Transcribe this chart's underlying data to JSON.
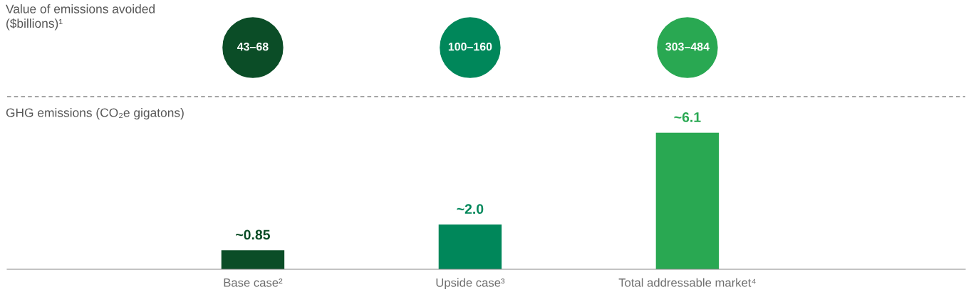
{
  "chart_data": [
    {
      "type": "other",
      "title": "Value of emissions avoided\n($billions)¹",
      "annotations": [
        "43–68",
        "100–160",
        "303–484"
      ],
      "colors": [
        "#0b4d27",
        "#00875a",
        "#29a852"
      ]
    },
    {
      "type": "bar",
      "title": "GHG emissions (CO₂e gigatons)",
      "categories": [
        "Base case²",
        "Upside case³",
        "Total addressable market⁴"
      ],
      "values": [
        0.85,
        2.0,
        6.1
      ],
      "value_labels": [
        "~0.85",
        "~2.0",
        "~6.1"
      ],
      "colors": [
        "#0b4d27",
        "#00875a",
        "#29a852"
      ]
    }
  ]
}
